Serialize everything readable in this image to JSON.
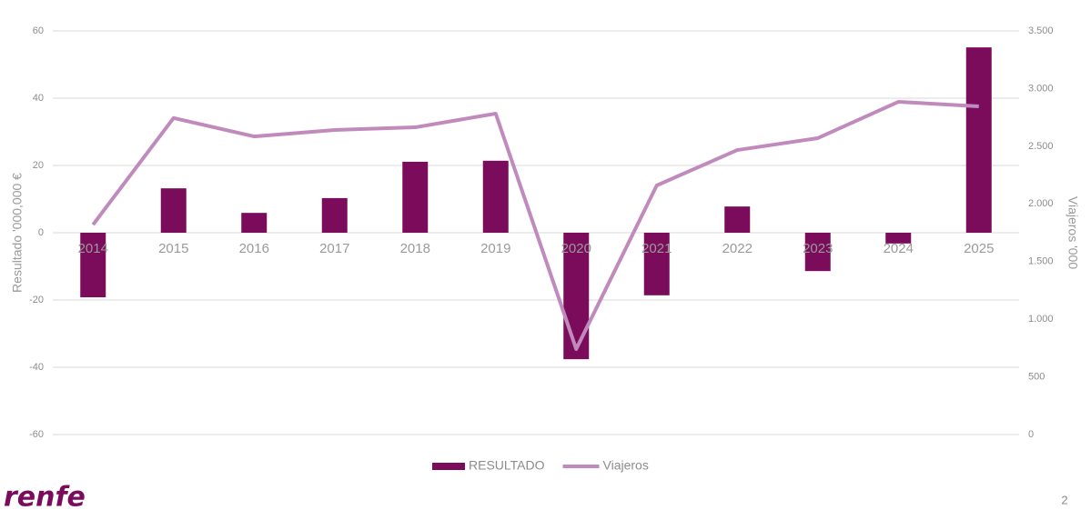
{
  "chart_data": {
    "type": "bar-line",
    "categories": [
      "2014",
      "2015",
      "2016",
      "2017",
      "2018",
      "2019",
      "2020",
      "2021",
      "2022",
      "2023",
      "2024",
      "2025"
    ],
    "series": [
      {
        "name": "RESULTADO",
        "type": "bar",
        "color": "#7b0c5c",
        "values": [
          -19.2,
          13.2,
          5.9,
          10.3,
          21.1,
          21.4,
          -37.6,
          -18.6,
          7.8,
          -11.4,
          -3.2,
          55.1
        ]
      },
      {
        "name": "Viajeros",
        "type": "line",
        "axis": "y2",
        "color": "#c08bbc",
        "values": [
          1820,
          2745,
          2585,
          2641,
          2664,
          2783,
          741,
          2160,
          2467,
          2570,
          2885,
          2846
        ]
      }
    ],
    "ylabel": "Resultado '000,000 €",
    "y2label": "Viajeros '000",
    "ylim": [
      -60,
      60
    ],
    "yticks": [
      -60,
      -40,
      -20,
      0,
      20,
      40,
      60
    ],
    "y2lim": [
      0,
      3500
    ],
    "y2ticks": [
      0,
      500,
      {
        "value": 1000,
        "label": "1.000"
      },
      {
        "value": 1500,
        "label": "1.500"
      },
      {
        "value": 2000,
        "label": "2.000"
      },
      {
        "value": 2500,
        "label": "2.500"
      },
      {
        "value": 3000,
        "label": "3.000"
      },
      {
        "value": 3500,
        "label": "3.500"
      }
    ],
    "grid": true,
    "legend": "bottom"
  },
  "logo": "renfe",
  "page_number": "2"
}
